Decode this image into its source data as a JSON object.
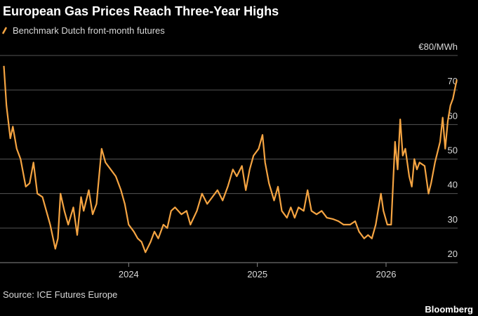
{
  "chart_data": {
    "type": "line",
    "title": "European Gas Prices Reach Three-Year Highs",
    "source": "Source: ICE Futures Europe",
    "brand": "Bloomberg",
    "x": [
      2023.03,
      2023.05,
      2023.08,
      2023.1,
      2023.13,
      2023.16,
      2023.2,
      2023.23,
      2023.26,
      2023.29,
      2023.33,
      2023.36,
      2023.39,
      2023.43,
      2023.45,
      2023.47,
      2023.5,
      2023.53,
      2023.57,
      2023.6,
      2023.63,
      2023.65,
      2023.69,
      2023.72,
      2023.75,
      2023.79,
      2023.82,
      2023.86,
      2023.9,
      2023.94,
      2023.97,
      2024.0,
      2024.04,
      2024.07,
      2024.1,
      2024.13,
      2024.17,
      2024.2,
      2024.23,
      2024.27,
      2024.3,
      2024.33,
      2024.36,
      2024.41,
      2024.45,
      2024.48,
      2024.53,
      2024.57,
      2024.61,
      2024.65,
      2024.69,
      2024.73,
      2024.77,
      2024.81,
      2024.84,
      2024.88,
      2024.91,
      2024.94,
      2024.97,
      2025.01,
      2025.04,
      2025.06,
      2025.09,
      2025.13,
      2025.16,
      2025.19,
      2025.23,
      2025.26,
      2025.29,
      2025.32,
      2025.36,
      2025.39,
      2025.42,
      2025.46,
      2025.5,
      2025.54,
      2025.59,
      2025.63,
      2025.67,
      2025.72,
      2025.76,
      2025.79,
      2025.83,
      2025.86,
      2025.89,
      2025.92,
      2025.96,
      2025.98,
      2026.01,
      2026.04,
      2026.07,
      2026.09,
      2026.11,
      2026.13,
      2026.15,
      2026.18,
      2026.2,
      2026.22,
      2026.24,
      2026.26,
      2026.3,
      2026.33,
      2026.35,
      2026.38,
      2026.42,
      2026.44,
      2026.46,
      2026.48,
      2026.5,
      2026.52,
      2026.55
    ],
    "series": [
      {
        "name": "Benchmark Dutch front-month futures",
        "color": "#f5a442",
        "values": [
          77,
          65.5,
          56,
          59.4,
          53,
          50,
          42,
          43,
          49,
          40,
          39,
          35,
          31,
          24,
          27,
          40,
          35,
          31,
          36,
          28,
          39,
          35,
          41,
          34,
          37,
          53,
          49,
          47,
          45,
          41,
          37,
          31,
          29,
          27,
          26,
          23,
          26,
          29,
          27,
          31,
          30,
          35,
          36,
          34,
          35,
          31,
          35,
          40,
          37,
          39,
          41,
          38,
          42,
          47,
          45,
          48,
          41,
          47,
          51,
          53,
          57,
          49,
          43,
          38,
          42,
          35,
          33,
          36,
          33,
          36,
          35,
          41,
          35,
          34,
          35,
          33,
          32.6,
          32,
          31,
          31,
          32,
          29,
          27,
          28,
          27,
          31,
          40,
          35,
          31,
          31,
          55,
          47,
          61.5,
          51,
          53,
          45,
          42,
          50,
          47,
          49,
          48,
          40,
          43,
          49,
          55,
          62,
          53,
          61,
          65.5,
          67.5,
          73
        ]
      }
    ],
    "xlim": [
      2023.0,
      2026.6
    ],
    "xticks": [
      2024,
      2025,
      2026
    ],
    "ylim": [
      20,
      80
    ],
    "yticks": [
      20,
      30,
      40,
      50,
      60,
      70,
      {
        "value": 80,
        "label": "€80/MWh"
      }
    ],
    "grid": true
  }
}
